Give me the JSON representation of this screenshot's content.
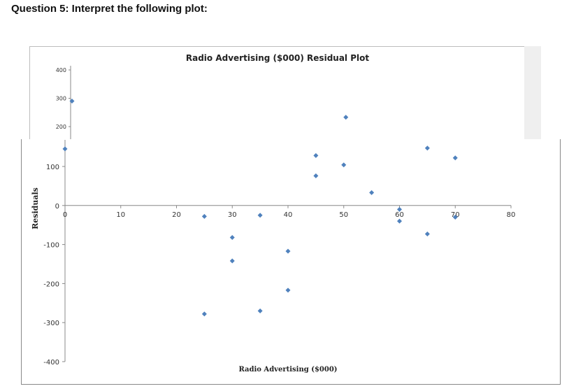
{
  "question": "Question 5: Interpret the following plot:",
  "chart_data": {
    "type": "scatter",
    "title": "Radio Advertising ($000)  Residual Plot",
    "xlabel": "Radio Advertising ($000)",
    "ylabel": "Residuals",
    "upper_fragment": {
      "yticks": [
        "400",
        "300",
        "200"
      ],
      "points": [
        {
          "x": 0,
          "y": 290
        },
        {
          "x": 50,
          "y": 233
        }
      ]
    },
    "xlim": [
      0,
      80
    ],
    "ylim": [
      -400,
      100
    ],
    "xticks": [
      "0",
      "10",
      "20",
      "30",
      "40",
      "50",
      "60",
      "70",
      "80"
    ],
    "yticks": [
      "100",
      "0",
      "-100",
      "-200",
      "-300",
      "-400"
    ],
    "points": [
      {
        "x": 0,
        "y": 145
      },
      {
        "x": 25,
        "y": -28
      },
      {
        "x": 25,
        "y": -278
      },
      {
        "x": 30,
        "y": -82
      },
      {
        "x": 30,
        "y": -142
      },
      {
        "x": 35,
        "y": -25
      },
      {
        "x": 35,
        "y": -270
      },
      {
        "x": 40,
        "y": -117
      },
      {
        "x": 40,
        "y": -217
      },
      {
        "x": 45,
        "y": 128
      },
      {
        "x": 45,
        "y": 76
      },
      {
        "x": 50,
        "y": 104
      },
      {
        "x": 55,
        "y": 33
      },
      {
        "x": 60,
        "y": -10
      },
      {
        "x": 60,
        "y": -40
      },
      {
        "x": 65,
        "y": 147
      },
      {
        "x": 65,
        "y": -73
      },
      {
        "x": 70,
        "y": 122
      },
      {
        "x": 70,
        "y": -30
      }
    ],
    "marker_color": "#4f81bd"
  }
}
